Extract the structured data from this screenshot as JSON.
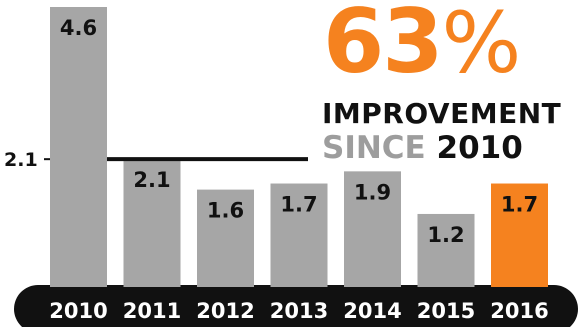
{
  "chart_data": {
    "type": "bar",
    "categories": [
      "2010",
      "2011",
      "2012",
      "2013",
      "2014",
      "2015",
      "2016"
    ],
    "values": [
      4.6,
      2.1,
      1.6,
      1.7,
      1.9,
      1.2,
      1.7
    ],
    "data_labels": [
      "4.6",
      "2.1",
      "1.6",
      "1.7",
      "1.9",
      "1.2",
      "1.7"
    ],
    "highlight_index": 6,
    "reference_line": {
      "value": 2.1,
      "label": "2.1"
    },
    "ylim": [
      0,
      4.6
    ],
    "grid": false,
    "colors": {
      "bar": "#a6a6a6",
      "highlight": "#f5821f",
      "axis_band": "#111111",
      "tick_text": "#ffffff",
      "value_text": "#111111",
      "reference_line": "#111111"
    }
  },
  "headline": {
    "percent_value": "63",
    "percent_sign": "%",
    "line1": "IMPROVEMENT",
    "since_word": "SINCE",
    "since_year": "2010"
  }
}
